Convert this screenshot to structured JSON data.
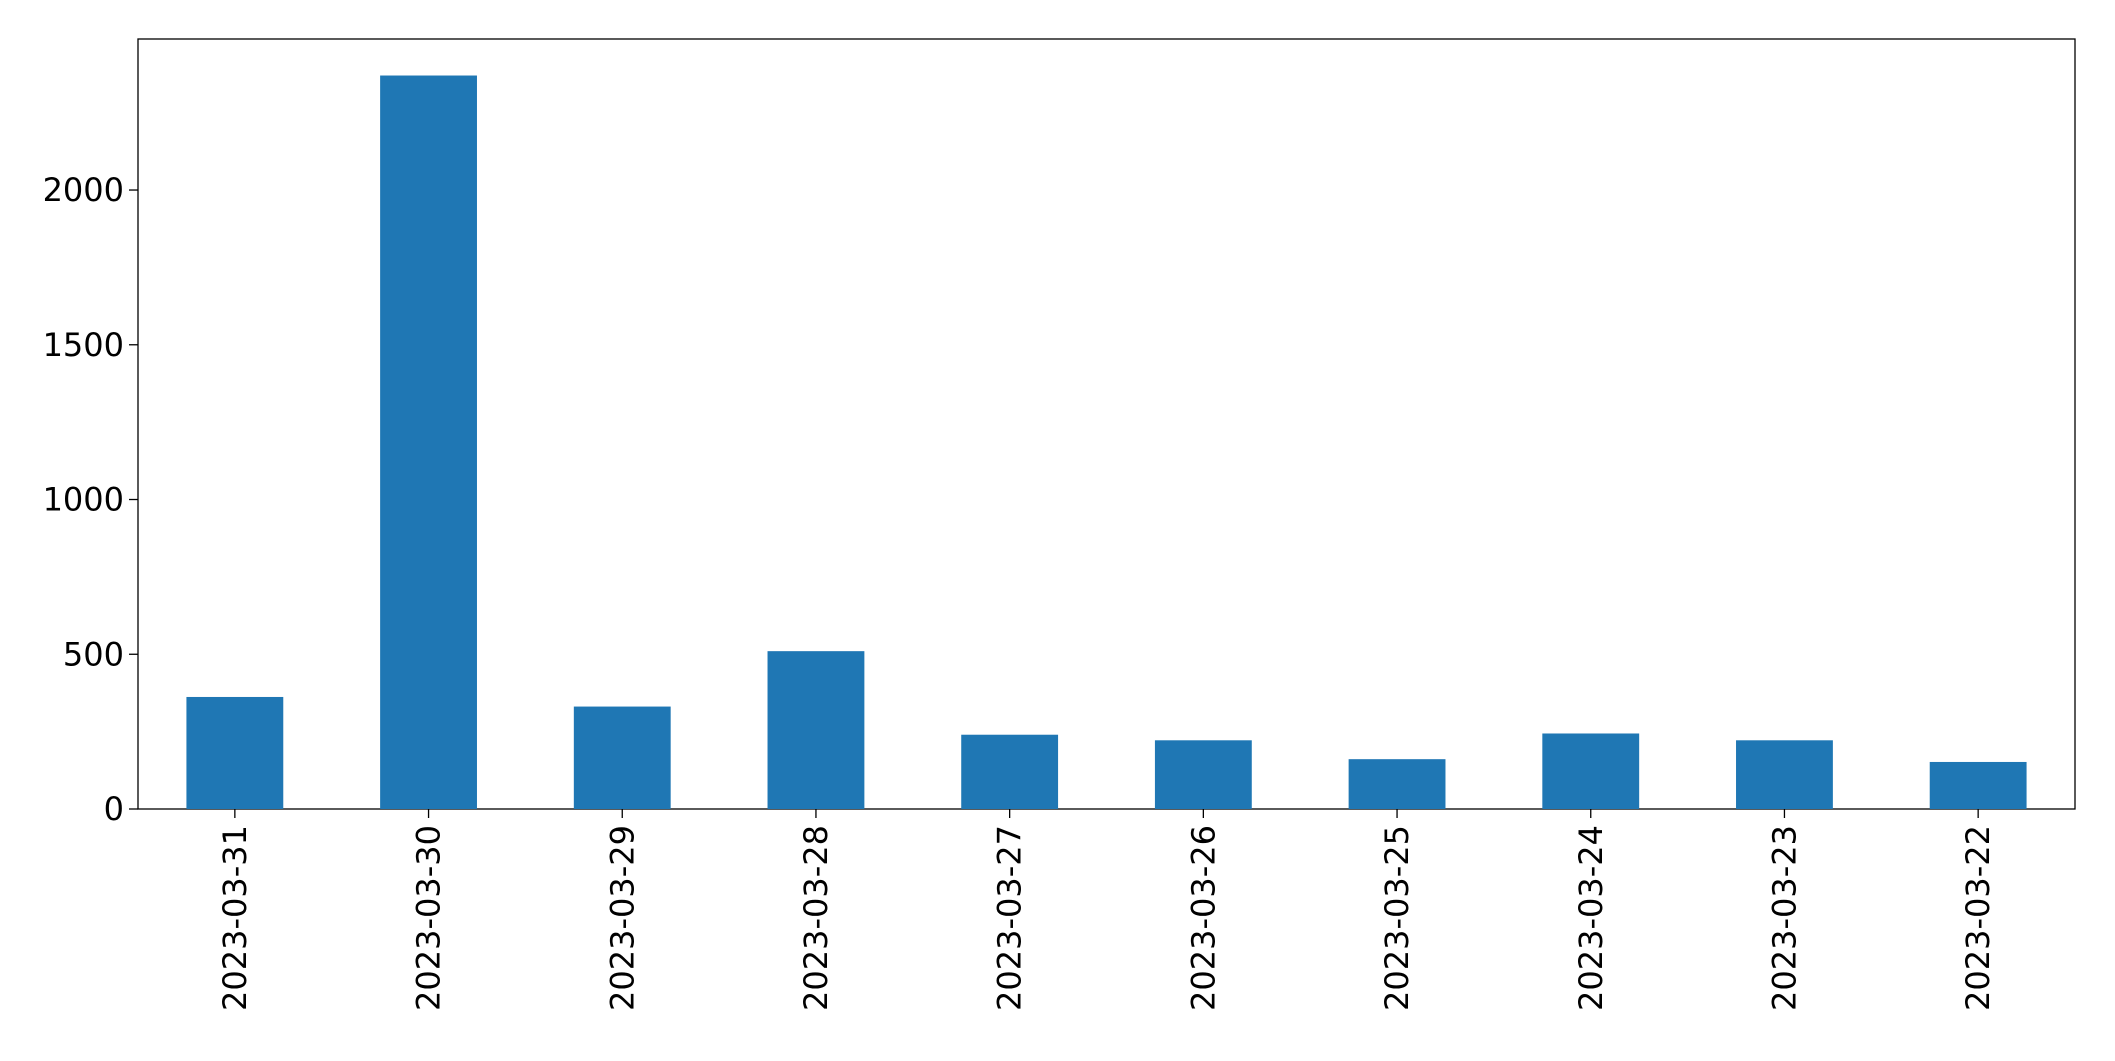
{
  "chart_data": {
    "type": "bar",
    "categories": [
      "2023-03-31",
      "2023-03-30",
      "2023-03-29",
      "2023-03-28",
      "2023-03-27",
      "2023-03-26",
      "2023-03-25",
      "2023-03-24",
      "2023-03-23",
      "2023-03-22"
    ],
    "values": [
      362,
      2370,
      331,
      510,
      240,
      222,
      161,
      244,
      222,
      152
    ],
    "color": "#1f77b4",
    "ylim": [
      0,
      2488
    ],
    "yticks": [
      0,
      500,
      1000,
      1500,
      2000
    ],
    "grid": false
  }
}
